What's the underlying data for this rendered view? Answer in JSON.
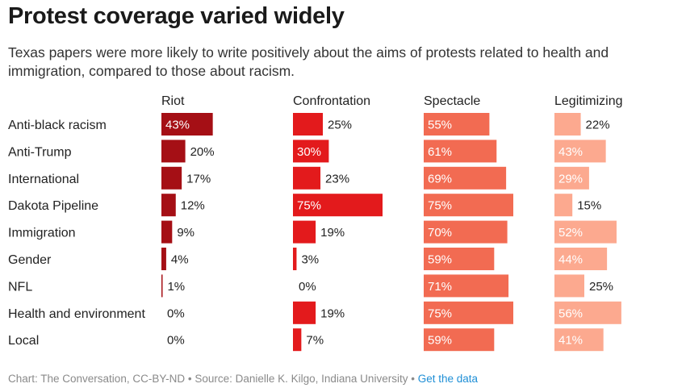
{
  "title": "Protest coverage varied widely",
  "subtitle": "Texas papers were more likely to write positively about the aims of protests related to health and immigration, compared to those about racism.",
  "footer": {
    "credit": "Chart: The Conversation, CC-BY-ND • Source: Danielle K. Kilgo, Indiana University • ",
    "link": "Get the data"
  },
  "chart_data": {
    "type": "bar",
    "orientation": "horizontal",
    "categories": [
      "Anti-black racism",
      "Anti-Trump",
      "International",
      "Dakota Pipeline",
      "Immigration",
      "Gender",
      "NFL",
      "Health and environment",
      "Local"
    ],
    "series": [
      {
        "name": "Riot",
        "color": "#a50f15",
        "values": [
          43,
          20,
          17,
          12,
          9,
          4,
          1,
          0,
          0
        ]
      },
      {
        "name": "Confrontation",
        "color": "#e31a1c",
        "values": [
          25,
          30,
          23,
          75,
          19,
          3,
          0,
          19,
          7
        ]
      },
      {
        "name": "Spectacle",
        "color": "#f26b52",
        "values": [
          55,
          61,
          69,
          75,
          70,
          59,
          71,
          75,
          59
        ]
      },
      {
        "name": "Legitimizing",
        "color": "#fca98f",
        "values": [
          22,
          43,
          29,
          15,
          52,
          44,
          25,
          56,
          41
        ]
      }
    ],
    "value_suffix": "%",
    "xlim": [
      0,
      100
    ]
  }
}
